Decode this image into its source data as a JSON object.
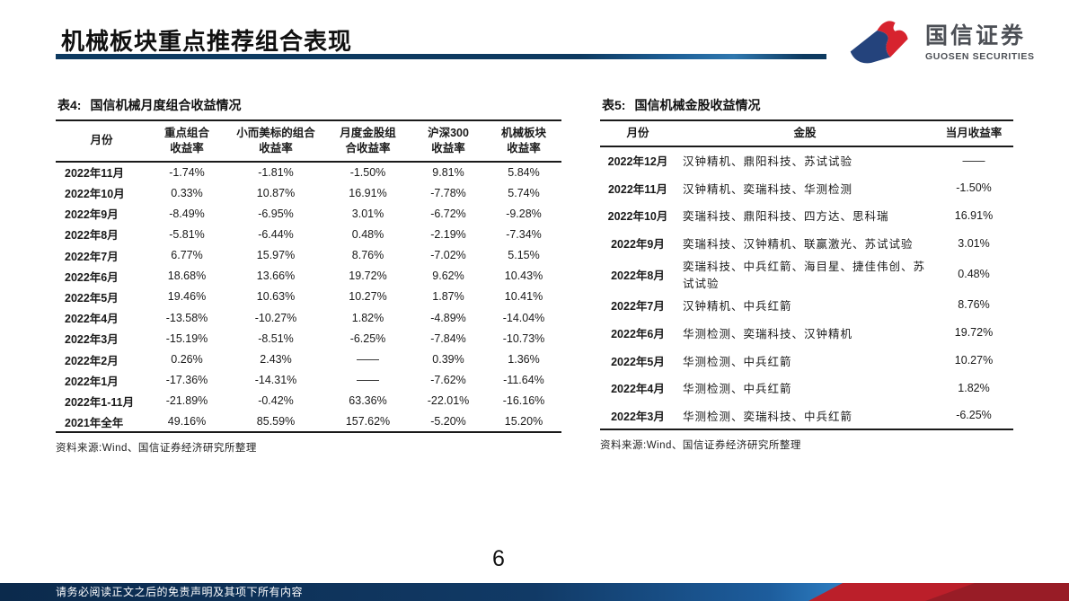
{
  "header": {
    "title": "机械板块重点推荐组合表现",
    "logo": {
      "name_cn": "国信证券",
      "name_en": "GUOSEN SECURITIES"
    }
  },
  "table4": {
    "caption_prefix": "表4:",
    "caption": "国信机械月度组合收益情况",
    "columns": [
      "月份",
      "重点组合\n收益率",
      "小而美标的组合\n收益率",
      "月度金股组\n合收益率",
      "沪深300\n收益率",
      "机械板块\n收益率"
    ],
    "rows": [
      [
        "2022年11月",
        "-1.74%",
        "-1.81%",
        "-1.50%",
        "9.81%",
        "5.84%"
      ],
      [
        "2022年10月",
        "0.33%",
        "10.87%",
        "16.91%",
        "-7.78%",
        "5.74%"
      ],
      [
        "2022年9月",
        "-8.49%",
        "-6.95%",
        "3.01%",
        "-6.72%",
        "-9.28%"
      ],
      [
        "2022年8月",
        "-5.81%",
        "-6.44%",
        "0.48%",
        "-2.19%",
        "-7.34%"
      ],
      [
        "2022年7月",
        "6.77%",
        "15.97%",
        "8.76%",
        "-7.02%",
        "5.15%"
      ],
      [
        "2022年6月",
        "18.68%",
        "13.66%",
        "19.72%",
        "9.62%",
        "10.43%"
      ],
      [
        "2022年5月",
        "19.46%",
        "10.63%",
        "10.27%",
        "1.87%",
        "10.41%"
      ],
      [
        "2022年4月",
        "-13.58%",
        "-10.27%",
        "1.82%",
        "-4.89%",
        "-14.04%"
      ],
      [
        "2022年3月",
        "-15.19%",
        "-8.51%",
        "-6.25%",
        "-7.84%",
        "-10.73%"
      ],
      [
        "2022年2月",
        "0.26%",
        "2.43%",
        "——",
        "0.39%",
        "1.36%"
      ],
      [
        "2022年1月",
        "-17.36%",
        "-14.31%",
        "——",
        "-7.62%",
        "-11.64%"
      ],
      [
        "2022年1-11月",
        "-21.89%",
        "-0.42%",
        "63.36%",
        "-22.01%",
        "-16.16%"
      ],
      [
        "2021年全年",
        "49.16%",
        "85.59%",
        "157.62%",
        "-5.20%",
        "15.20%"
      ]
    ],
    "source": "资料来源:Wind、国信证券经济研究所整理"
  },
  "table5": {
    "caption_prefix": "表5:",
    "caption": "国信机械金股收益情况",
    "columns": [
      "月份",
      "金股",
      "当月收益率"
    ],
    "rows": [
      [
        "2022年12月",
        "汉钟精机、鼎阳科技、苏试试验",
        "——"
      ],
      [
        "2022年11月",
        "汉钟精机、奕瑞科技、华测检测",
        "-1.50%"
      ],
      [
        "2022年10月",
        "奕瑞科技、鼎阳科技、四方达、思科瑞",
        "16.91%"
      ],
      [
        "2022年9月",
        "奕瑞科技、汉钟精机、联赢激光、苏试试验",
        "3.01%"
      ],
      [
        "2022年8月",
        "奕瑞科技、中兵红箭、海目星、捷佳伟创、苏试试验",
        "0.48%"
      ],
      [
        "2022年7月",
        "汉钟精机、中兵红箭",
        "8.76%"
      ],
      [
        "2022年6月",
        "华测检测、奕瑞科技、汉钟精机",
        "19.72%"
      ],
      [
        "2022年5月",
        "华测检测、中兵红箭",
        "10.27%"
      ],
      [
        "2022年4月",
        "华测检测、中兵红箭",
        "1.82%"
      ],
      [
        "2022年3月",
        "华测检测、奕瑞科技、中兵红箭",
        "-6.25%"
      ]
    ],
    "source": "资料来源:Wind、国信证券经济研究所整理"
  },
  "footer": {
    "page_number": "6",
    "disclaimer": "请务必阅读正文之后的免责声明及其项下所有内容"
  },
  "colors": {
    "accent_navy": "#0d3a60",
    "brand_blue": "#24437c",
    "brand_red": "#d7232e",
    "footer_navy": "#113a66",
    "footer_red": "#bb1f2a",
    "footer_dark_red": "#981c26"
  }
}
